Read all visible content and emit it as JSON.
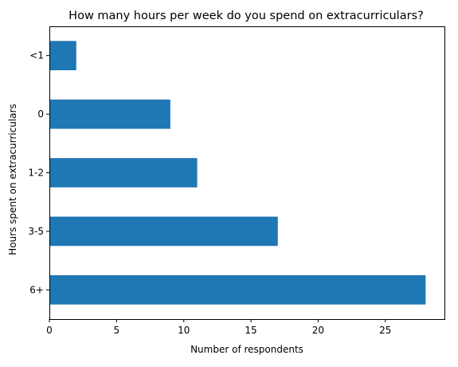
{
  "chart_data": {
    "type": "bar",
    "orientation": "horizontal",
    "title": "How many hours per week do you spend on extracurriculars?",
    "xlabel": "Number of respondents",
    "ylabel": "Hours spent on extracurriculars",
    "categories": [
      "<1",
      "0",
      "1-2",
      "3-5",
      "6+"
    ],
    "values": [
      2,
      9,
      11,
      17,
      28
    ],
    "xlim": [
      0,
      29.4
    ],
    "xticks": [
      0,
      5,
      10,
      15,
      20,
      25
    ],
    "grid": false,
    "bar_color": "#1f77b4"
  }
}
